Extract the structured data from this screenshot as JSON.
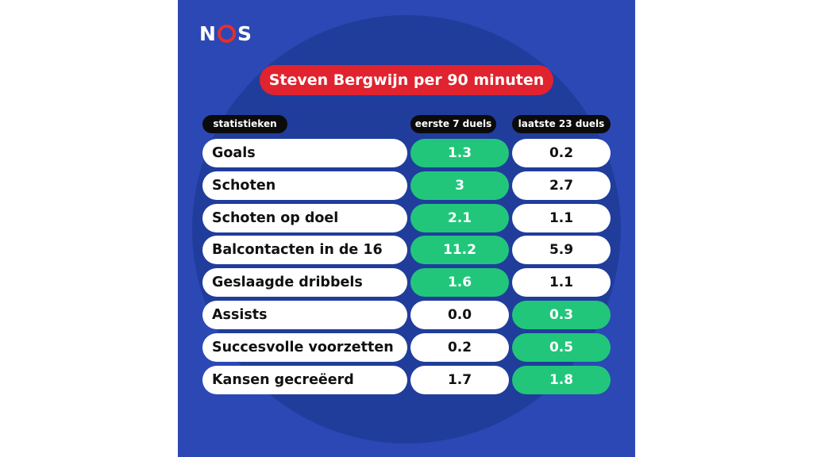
{
  "logo_text": [
    "N",
    "O",
    "S"
  ],
  "title": "Steven Bergwijn per 90 minuten",
  "headers": {
    "stat": "statistieken",
    "first": "eerste 7 duels",
    "last": "laatste 23 duels"
  },
  "colors": {
    "panel": "#2b48b5",
    "circle": "#203d9c",
    "title_bg": "#e0232f",
    "highlight": "#21c67a",
    "header_bg": "#0b0b0b"
  },
  "rows": [
    {
      "label": "Goals",
      "first": "1.3",
      "last": "0.2",
      "best": "first"
    },
    {
      "label": "Schoten",
      "first": "3",
      "last": "2.7",
      "best": "first"
    },
    {
      "label": "Schoten op doel",
      "first": "2.1",
      "last": "1.1",
      "best": "first"
    },
    {
      "label": "Balcontacten in de 16",
      "first": "11.2",
      "last": "5.9",
      "best": "first"
    },
    {
      "label": "Geslaagde dribbels",
      "first": "1.6",
      "last": "1.1",
      "best": "first"
    },
    {
      "label": "Assists",
      "first": "0.0",
      "last": "0.3",
      "best": "last"
    },
    {
      "label": "Succesvolle voorzetten",
      "first": "0.2",
      "last": "0.5",
      "best": "last"
    },
    {
      "label": "Kansen gecreëerd",
      "first": "1.7",
      "last": "1.8",
      "best": "last"
    }
  ]
}
